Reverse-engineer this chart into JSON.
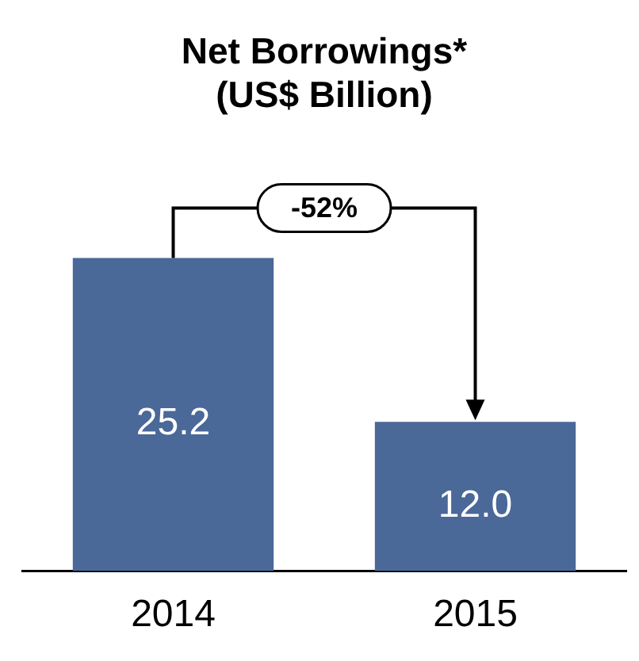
{
  "chart_data": {
    "type": "bar",
    "title": "Net Borrowings*\n(US$ Billion)",
    "categories": [
      "2014",
      "2015"
    ],
    "values": [
      25.2,
      12.0
    ],
    "color": "#4a6898",
    "value_labels": [
      "25.2",
      "12.0"
    ],
    "grid": false,
    "legend": false,
    "annotations": [
      "-52%"
    ]
  }
}
